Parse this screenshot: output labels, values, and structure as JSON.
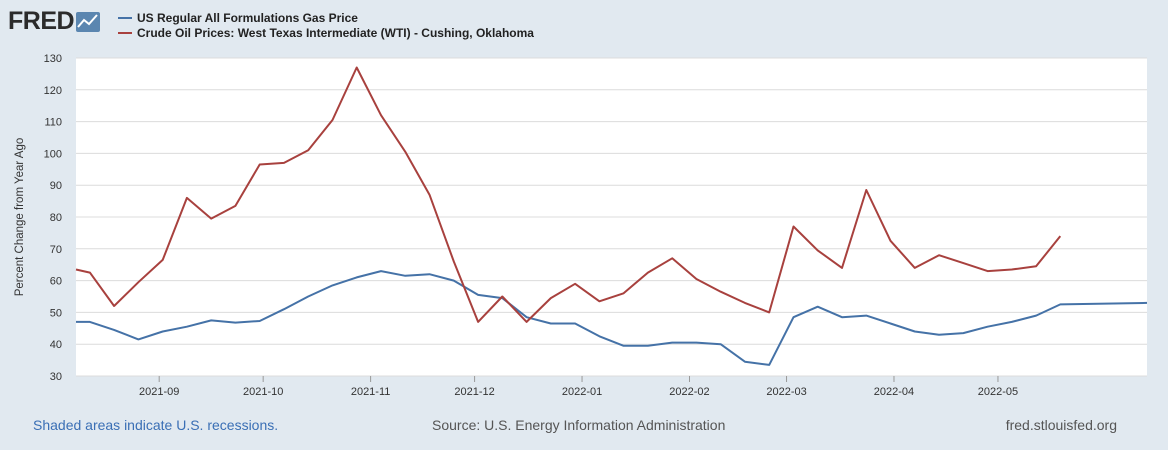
{
  "logo": {
    "text": "FRED",
    "icon": "chart-line-icon"
  },
  "colors": {
    "gas": "#4572a7",
    "oil": "#a8413e",
    "grid": "#dcdcdc",
    "plot_bg": "#ffffff",
    "page_bg": "#e1e9f0"
  },
  "footer": {
    "recession_note": "Shaded areas indicate U.S. recessions.",
    "source": "Source: U.S. Energy Information Administration",
    "site": "fred.stlouisfed.org"
  },
  "chart_data": {
    "type": "line",
    "title": "",
    "xlabel": "",
    "ylabel": "Percent Change from Year Ago",
    "ylim": [
      30,
      130
    ],
    "yticks": [
      30,
      40,
      50,
      60,
      70,
      80,
      90,
      100,
      110,
      120,
      130
    ],
    "grid": true,
    "legend_position": "top-left",
    "xlim_days": [
      0,
      309
    ],
    "xticks": [
      {
        "label": "2021-09",
        "day": 24
      },
      {
        "label": "2021-10",
        "day": 54
      },
      {
        "label": "2021-11",
        "day": 85
      },
      {
        "label": "2021-12",
        "day": 115
      },
      {
        "label": "2022-01",
        "day": 146
      },
      {
        "label": "2022-02",
        "day": 177
      },
      {
        "label": "2022-03",
        "day": 205
      },
      {
        "label": "2022-04",
        "day": 236
      },
      {
        "label": "2022-05",
        "day": 266
      }
    ],
    "x_days": [
      0,
      4,
      11,
      18,
      25,
      32,
      39,
      46,
      53,
      60,
      67,
      74,
      81,
      88,
      95,
      102,
      109,
      116,
      123,
      130,
      137,
      144,
      151,
      158,
      165,
      172,
      179,
      186,
      193,
      200,
      207,
      214,
      221,
      228,
      235,
      242,
      249,
      256,
      263,
      270,
      277,
      284
    ],
    "series": [
      {
        "name": "US Regular All Formulations Gas Price",
        "color": "#4572a7",
        "values": [
          47,
          47,
          44.5,
          41.5,
          44,
          45.5,
          47.5,
          46.8,
          47.3,
          51,
          55,
          58.5,
          61,
          63,
          61.5,
          62,
          60,
          55.5,
          54.5,
          48.5,
          46.5,
          46.5,
          42.5,
          39.5,
          39.5,
          40.5,
          40.5,
          40,
          34.5,
          33.5,
          48.5,
          51.8,
          48.5,
          49,
          46.5,
          44,
          43,
          43.5,
          45.5,
          47,
          49,
          52.5
        ]
      },
      {
        "name": "Crude Oil Prices: West Texas Intermediate (WTI) - Cushing, Oklahoma",
        "color": "#a8413e",
        "values": [
          63.5,
          62.5,
          52,
          59.5,
          66.5,
          86,
          79.5,
          83.5,
          96.5,
          97,
          101,
          110.5,
          127,
          112,
          100.5,
          87,
          66,
          47,
          55,
          47,
          54.5,
          59,
          53.5,
          56,
          62.5,
          67,
          60.5,
          56.5,
          53,
          50,
          77,
          69.5,
          64,
          88.5,
          72.5,
          64,
          68,
          65.5,
          63,
          63.5,
          64.5,
          74
        ]
      }
    ],
    "gas_tail_value": 53
  }
}
